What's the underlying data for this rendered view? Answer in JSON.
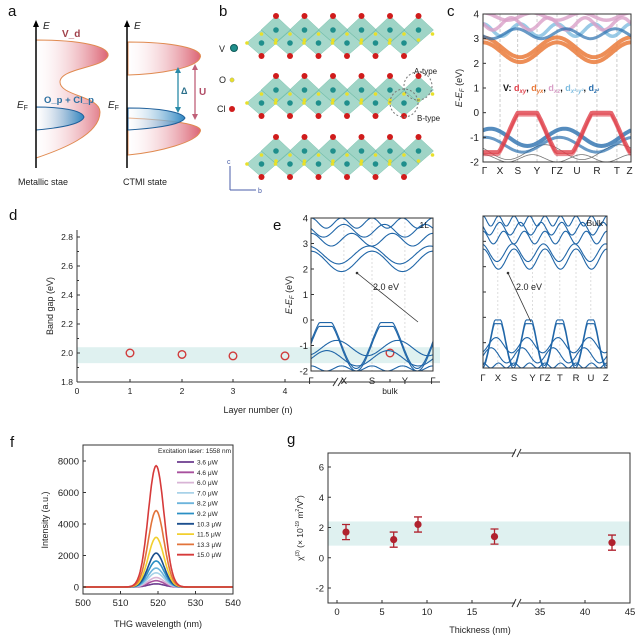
{
  "panel_labels": {
    "a": "a",
    "b": "b",
    "c": "c",
    "d": "d",
    "e": "e",
    "f": "f",
    "g": "g"
  },
  "panel_a": {
    "axis_E": "E",
    "E_F_main": "E",
    "E_F_sub": "F",
    "v_d": "V_d",
    "o_p_cl_p": "O_p + Cl_p",
    "delta": "Δ",
    "u": "U",
    "metallic_caption": "Metallic stae",
    "ctmi_caption": "CTMI state",
    "colors": {
      "v_d": "#d9606e",
      "o_p": "#2e86c1",
      "outline": "#e08a50"
    }
  },
  "panel_b": {
    "legend": [
      {
        "label": "V",
        "color": "#1f8f8c"
      },
      {
        "label": "O",
        "color": "#e8e02a"
      },
      {
        "label": "Cl",
        "color": "#d01c1c"
      }
    ],
    "a_type": "A-type",
    "b_type": "B-type",
    "axis_c": "c",
    "axis_b": "b",
    "octahedron_color": "#5fb8a0"
  },
  "chart_data": [
    {
      "id": "c",
      "type": "line",
      "title": "",
      "ylabel_main": "E-E",
      "ylabel_sub": "F",
      "ylabel_unit": " (eV)",
      "ylim": [
        -2,
        4
      ],
      "yticks": [
        "-2",
        "-1",
        "0",
        "1",
        "2",
        "3",
        "4"
      ],
      "xticks": [
        "Γ",
        "X",
        "S",
        "Y",
        "ΓZ",
        "U",
        "R",
        "T",
        "Z"
      ],
      "legend_prefix": "V: ",
      "legend": [
        {
          "label": "d",
          "sub": "xy",
          "color": "#e0404a"
        },
        {
          "label": "d",
          "sub": "yx",
          "color": "#ea7a3a"
        },
        {
          "label": "d",
          "sub": "xz",
          "color": "#d9a0c8"
        },
        {
          "label": "d",
          "sub": "x²-y²",
          "color": "#7fbde0"
        },
        {
          "label": "d",
          "sub": "z²",
          "color": "#2a6fae"
        }
      ],
      "separator": ", "
    },
    {
      "id": "d",
      "type": "scatter",
      "title": "",
      "xlabel": "Layer number (n)",
      "ylabel": "Band gap (eV)",
      "xticks": [
        "0",
        "1",
        "2",
        "3",
        "4",
        "bulk"
      ],
      "categories": [
        "1",
        "2",
        "3",
        "4",
        "bulk"
      ],
      "values": [
        2.0,
        1.99,
        1.98,
        1.98,
        2.0
      ],
      "ylim": [
        1.8,
        2.8
      ],
      "yticks": [
        "1.8",
        "2.0",
        "2.2",
        "2.4",
        "2.6",
        "2.8"
      ],
      "shaded_band": [
        1.93,
        2.04
      ],
      "axis_break": true,
      "marker": "open-circle",
      "color": "#d03a3a",
      "band_color": "#dff1f0"
    },
    {
      "id": "e",
      "type": "line",
      "title": "",
      "ylabel_main": "E-E",
      "ylabel_sub": "F",
      "ylabel_unit": " (eV)",
      "ylim": [
        -2,
        4
      ],
      "yticks": [
        "-2",
        "-1",
        "0",
        "1",
        "2",
        "3",
        "4"
      ],
      "color": "#2066a8",
      "subplots": [
        {
          "label": "1L",
          "xticks": [
            "Γ",
            "X",
            "S",
            "Y",
            "Γ"
          ],
          "annotation": "2.0 eV"
        },
        {
          "label": "Bulk",
          "xticks": [
            "Γ",
            "X",
            "S",
            "Y",
            "ΓZ",
            "T",
            "R",
            "U",
            "Z"
          ],
          "annotation": "2.0 eV"
        }
      ]
    },
    {
      "id": "f",
      "type": "line",
      "title": "",
      "xlabel": "THG wavelength (nm)",
      "ylabel": "Intensity (a.u.)",
      "xlim": [
        500,
        540
      ],
      "xticks": [
        "500",
        "510",
        "520",
        "530",
        "540"
      ],
      "ylim": [
        -400,
        8800
      ],
      "yticks": [
        "0",
        "2000",
        "4000",
        "6000",
        "8000"
      ],
      "legend_title": "Excitation laser: 1558 nm",
      "legend_position": "top-right",
      "peak_center_nm": 519.5,
      "series": [
        {
          "name": "3.6 μW",
          "peak": 200,
          "color": "#6b3b8e"
        },
        {
          "name": "4.6 μW",
          "peak": 400,
          "color": "#a8509e"
        },
        {
          "name": "6.0 μW",
          "peak": 600,
          "color": "#d8b4d6"
        },
        {
          "name": "7.0 μW",
          "peak": 900,
          "color": "#a8d2e8"
        },
        {
          "name": "8.2 μW",
          "peak": 1200,
          "color": "#6cb4dc"
        },
        {
          "name": "9.2 μW",
          "peak": 1650,
          "color": "#2a8fc4"
        },
        {
          "name": "10.3 μW",
          "peak": 2150,
          "color": "#1c4f8e"
        },
        {
          "name": "11.5 μW",
          "peak": 3150,
          "color": "#f2cf2e"
        },
        {
          "name": "13.3 μW",
          "peak": 4850,
          "color": "#e2733a"
        },
        {
          "name": "15.0 μW",
          "peak": 7700,
          "color": "#d63a3a"
        }
      ]
    },
    {
      "id": "g",
      "type": "scatter",
      "title": "",
      "xlabel": "Thickness (nm)",
      "ylabel": "χ(3) (× 10-19 m2/V2)",
      "ylabel_parts": {
        "chi": "χ",
        "chi_sup": "(3)",
        "mid": " (× 10",
        "exp": "-19",
        "unit": " m",
        "sq": "2",
        "per": "/V",
        "sq2": "2",
        "close": ")"
      },
      "xticks": [
        "0",
        "5",
        "10",
        "15",
        "35",
        "40",
        "45"
      ],
      "yticks": [
        "-2",
        "0",
        "2",
        "4",
        "6"
      ],
      "ylim": [
        -3,
        7
      ],
      "axis_break": true,
      "x": [
        1.0,
        6.3,
        9.0,
        17.5,
        43.0
      ],
      "y": [
        1.7,
        1.2,
        2.2,
        1.4,
        1.0
      ],
      "yerr": [
        0.5,
        0.5,
        0.5,
        0.5,
        0.5
      ],
      "shaded_band": [
        0.8,
        2.4
      ],
      "color": "#b0222e",
      "band_color": "#dff1f0"
    }
  ]
}
